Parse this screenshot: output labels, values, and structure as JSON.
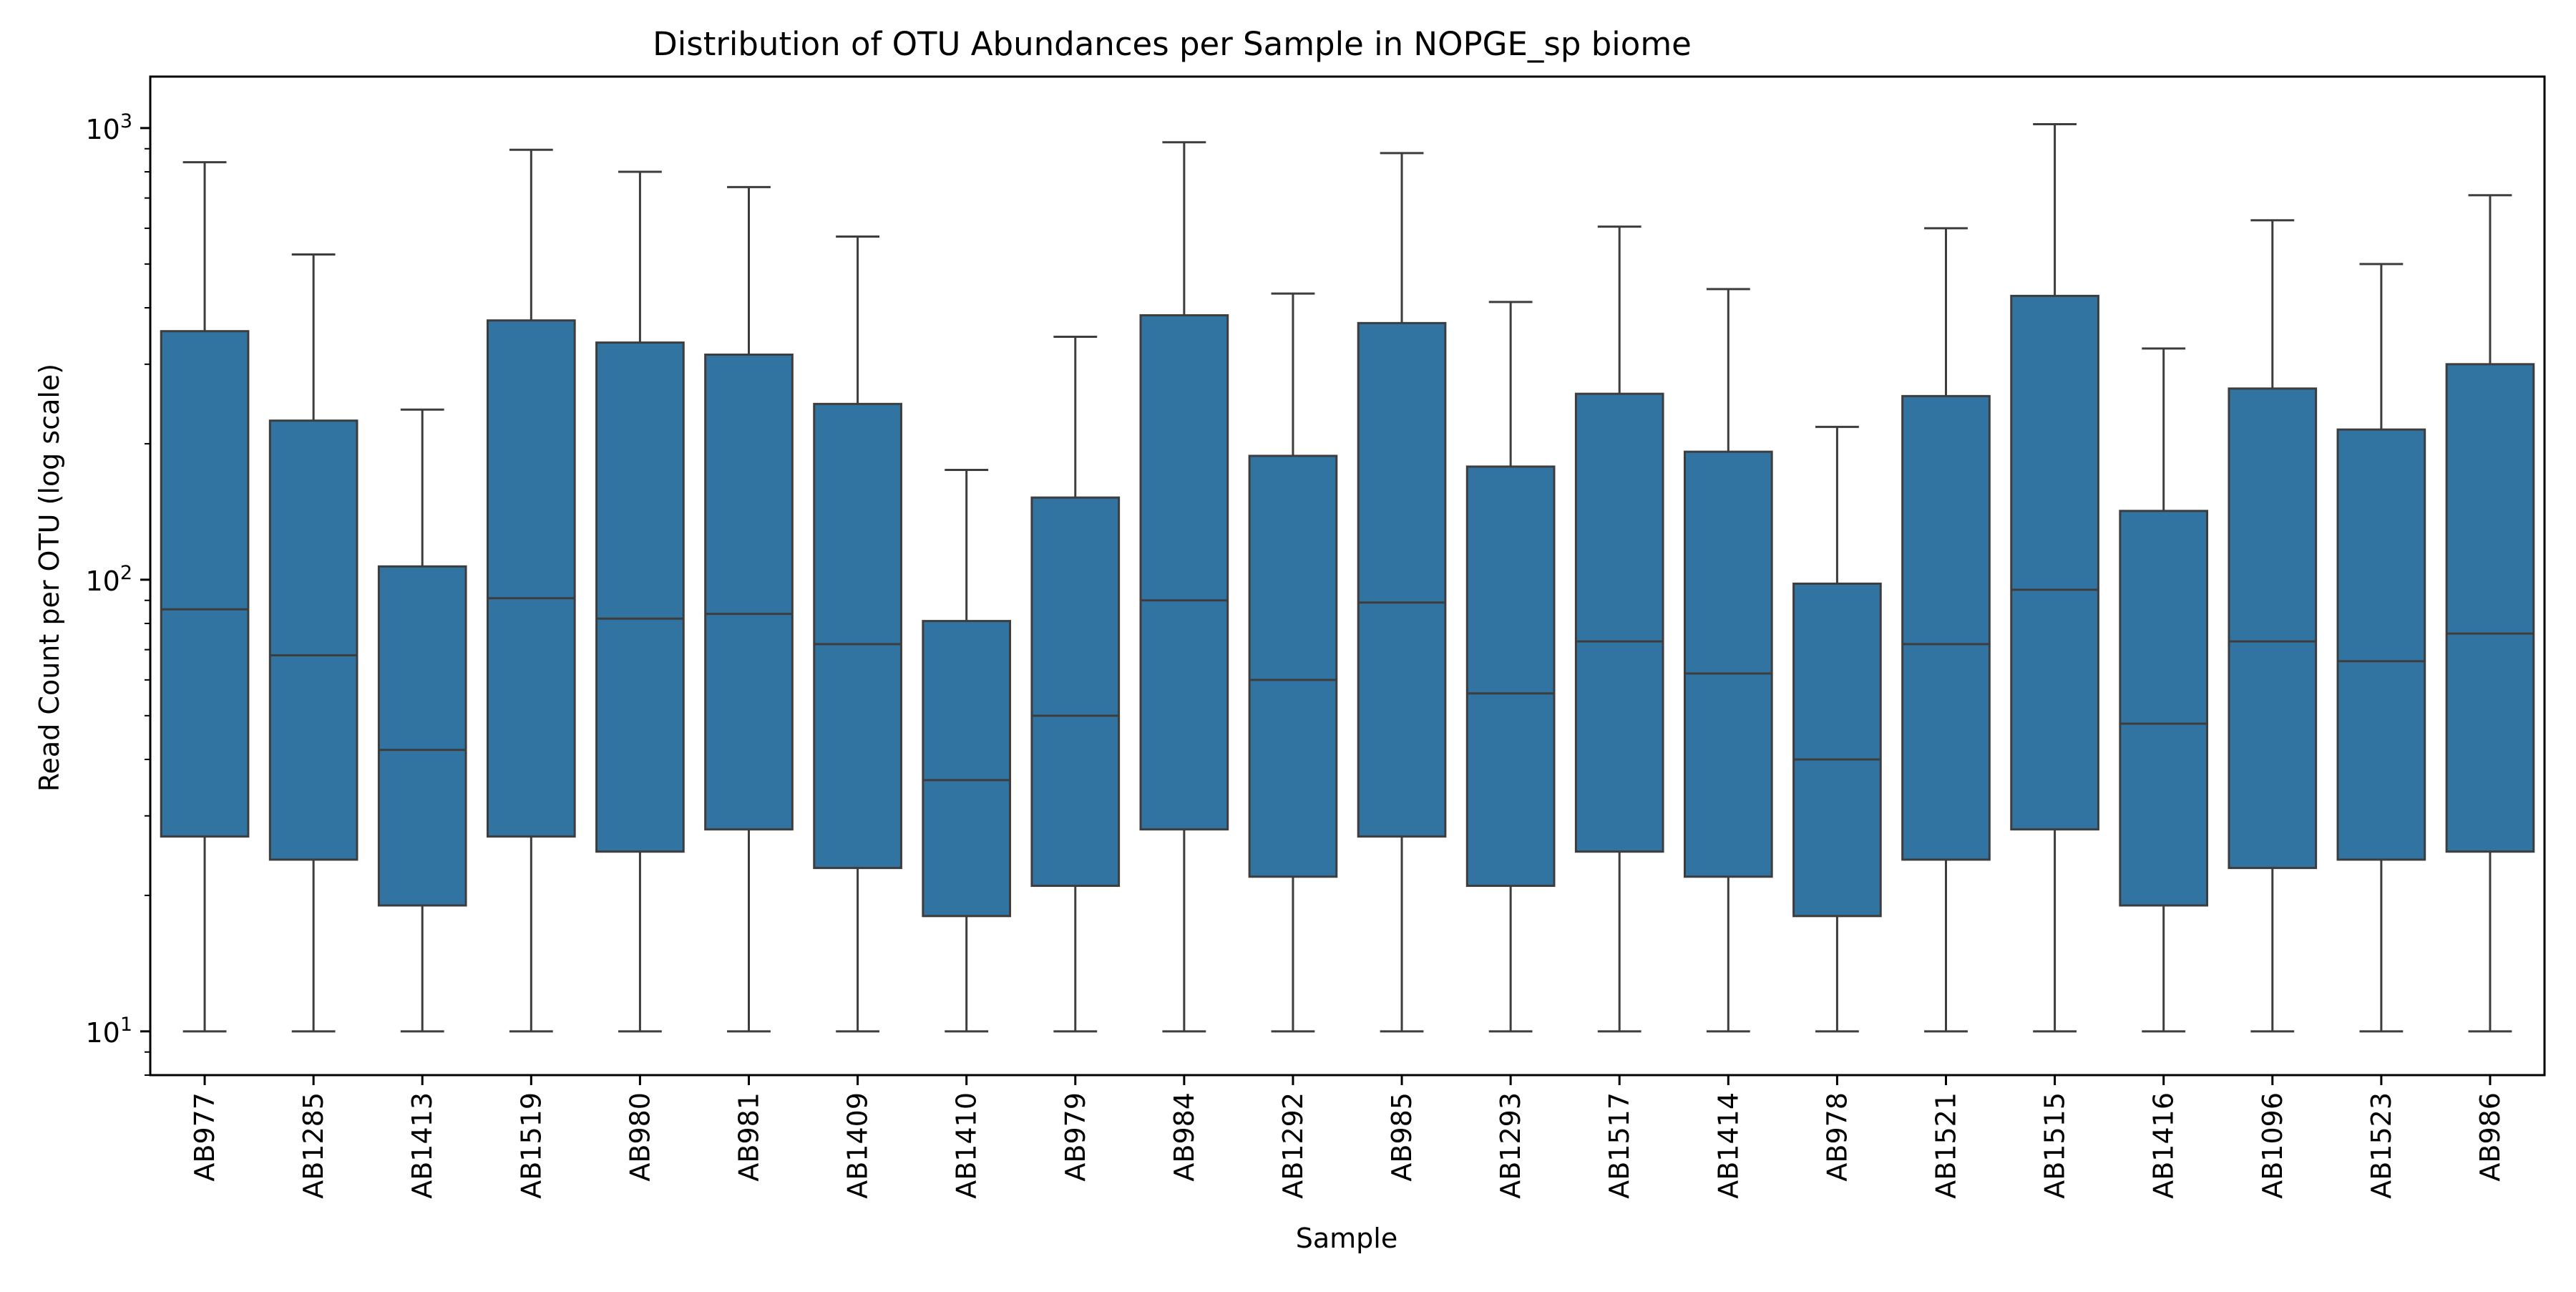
{
  "chart_data": {
    "type": "box",
    "title": "Distribution of OTU Abundances per Sample in NOPGE_sp biome",
    "xlabel": "Sample",
    "ylabel": "Read Count per OTU (log scale)",
    "yscale": "log",
    "ylim": [
      8,
      1300
    ],
    "y_ticks": [
      10,
      100,
      1000
    ],
    "y_tick_labels": [
      {
        "base": "10",
        "exp": "1"
      },
      {
        "base": "10",
        "exp": "2"
      },
      {
        "base": "10",
        "exp": "3"
      }
    ],
    "grid": false,
    "legend": "none",
    "box_color": "#3274a1",
    "line_color": "#3d3d3d",
    "categories": [
      "AB977",
      "AB1285",
      "AB1413",
      "AB1519",
      "AB980",
      "AB981",
      "AB1409",
      "AB1410",
      "AB979",
      "AB984",
      "AB1292",
      "AB985",
      "AB1293",
      "AB1517",
      "AB1414",
      "AB978",
      "AB1521",
      "AB1515",
      "AB1416",
      "AB1096",
      "AB1523",
      "AB986"
    ],
    "boxes": [
      {
        "whisker_low": 10,
        "q1": 27,
        "median": 86,
        "q3": 355,
        "whisker_high": 840
      },
      {
        "whisker_low": 10,
        "q1": 24,
        "median": 68,
        "q3": 225,
        "whisker_high": 525
      },
      {
        "whisker_low": 10,
        "q1": 19,
        "median": 42,
        "q3": 107,
        "whisker_high": 238
      },
      {
        "whisker_low": 10,
        "q1": 27,
        "median": 91,
        "q3": 375,
        "whisker_high": 895
      },
      {
        "whisker_low": 10,
        "q1": 25,
        "median": 82,
        "q3": 335,
        "whisker_high": 800
      },
      {
        "whisker_low": 10,
        "q1": 28,
        "median": 84,
        "q3": 315,
        "whisker_high": 740
      },
      {
        "whisker_low": 10,
        "q1": 23,
        "median": 72,
        "q3": 245,
        "whisker_high": 575
      },
      {
        "whisker_low": 10,
        "q1": 18,
        "median": 36,
        "q3": 81,
        "whisker_high": 175
      },
      {
        "whisker_low": 10,
        "q1": 21,
        "median": 50,
        "q3": 152,
        "whisker_high": 345
      },
      {
        "whisker_low": 10,
        "q1": 28,
        "median": 90,
        "q3": 385,
        "whisker_high": 930
      },
      {
        "whisker_low": 10,
        "q1": 22,
        "median": 60,
        "q3": 188,
        "whisker_high": 430
      },
      {
        "whisker_low": 10,
        "q1": 27,
        "median": 89,
        "q3": 370,
        "whisker_high": 880
      },
      {
        "whisker_low": 10,
        "q1": 21,
        "median": 56,
        "q3": 178,
        "whisker_high": 412
      },
      {
        "whisker_low": 10,
        "q1": 25,
        "median": 73,
        "q3": 258,
        "whisker_high": 605
      },
      {
        "whisker_low": 10,
        "q1": 22,
        "median": 62,
        "q3": 192,
        "whisker_high": 440
      },
      {
        "whisker_low": 10,
        "q1": 18,
        "median": 40,
        "q3": 98,
        "whisker_high": 218
      },
      {
        "whisker_low": 10,
        "q1": 24,
        "median": 72,
        "q3": 255,
        "whisker_high": 600
      },
      {
        "whisker_low": 10,
        "q1": 28,
        "median": 95,
        "q3": 425,
        "whisker_high": 1020
      },
      {
        "whisker_low": 10,
        "q1": 19,
        "median": 48,
        "q3": 142,
        "whisker_high": 325
      },
      {
        "whisker_low": 10,
        "q1": 23,
        "median": 73,
        "q3": 265,
        "whisker_high": 625
      },
      {
        "whisker_low": 10,
        "q1": 24,
        "median": 66,
        "q3": 215,
        "whisker_high": 500
      },
      {
        "whisker_low": 10,
        "q1": 25,
        "median": 76,
        "q3": 300,
        "whisker_high": 710
      }
    ]
  }
}
